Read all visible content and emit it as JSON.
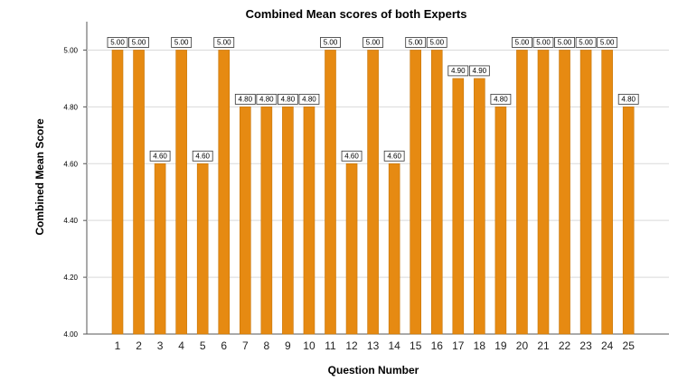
{
  "chart_data": {
    "type": "bar",
    "title": "Combined Mean scores of both Experts",
    "xlabel": "Question Number",
    "ylabel": "Combined Mean Score",
    "categories": [
      "1",
      "2",
      "3",
      "4",
      "5",
      "6",
      "7",
      "8",
      "9",
      "10",
      "11",
      "12",
      "13",
      "14",
      "15",
      "16",
      "17",
      "18",
      "19",
      "20",
      "21",
      "22",
      "23",
      "24",
      "25"
    ],
    "values": [
      5.0,
      5.0,
      4.6,
      5.0,
      4.6,
      5.0,
      4.8,
      4.8,
      4.8,
      4.8,
      5.0,
      4.6,
      5.0,
      4.6,
      5.0,
      5.0,
      4.9,
      4.9,
      4.8,
      5.0,
      5.0,
      5.0,
      5.0,
      5.0,
      4.8
    ],
    "data_labels": [
      "5.00",
      "5.00",
      "4.60",
      "5.00",
      "4.60",
      "5.00",
      "4.80",
      "4.80",
      "4.80",
      "4.80",
      "5.00",
      "4.60",
      "5.00",
      "4.60",
      "5.00",
      "5.00",
      "4.90",
      "4.90",
      "4.80",
      "5.00",
      "5.00",
      "5.00",
      "5.00",
      "5.00",
      "4.80"
    ],
    "yticks": [
      4.0,
      4.2,
      4.4,
      4.6,
      4.8,
      5.0
    ],
    "ytick_labels": [
      "4.00",
      "4.20",
      "4.40",
      "4.60",
      "4.80",
      "5.00"
    ],
    "ylim": [
      4.0,
      5.1
    ],
    "grid": true,
    "bar_color": "#e68a12",
    "bar_edge_color": "#c77508",
    "grid_color": "#d9d9d9"
  }
}
